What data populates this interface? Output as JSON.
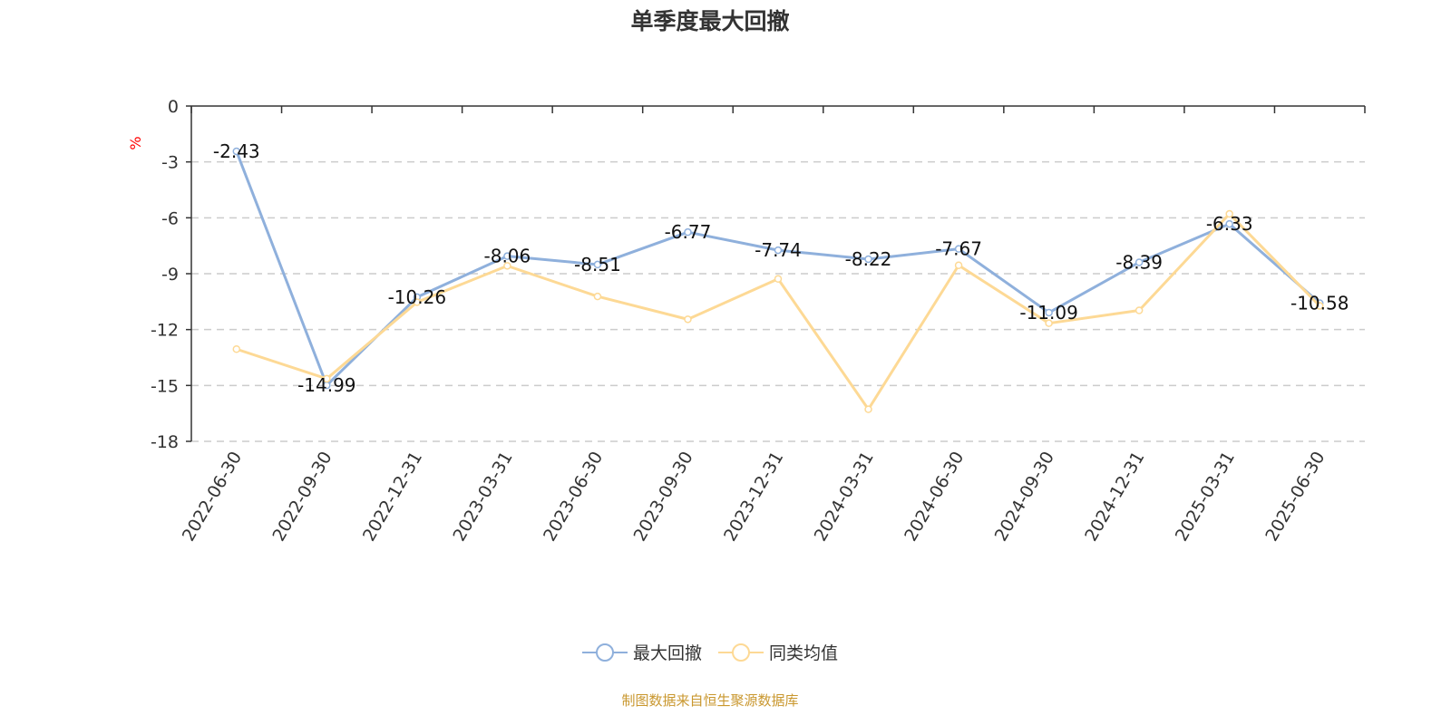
{
  "chart_data": {
    "type": "line",
    "title": "单季度最大回撤",
    "ylabel": "%",
    "xlabel": "",
    "categories": [
      "2022-06-30",
      "2022-09-30",
      "2022-12-31",
      "2023-03-31",
      "2023-06-30",
      "2023-09-30",
      "2023-12-31",
      "2024-03-31",
      "2024-06-30",
      "2024-09-30",
      "2024-12-31",
      "2025-03-31",
      "2025-06-30"
    ],
    "ylim": [
      -18,
      0
    ],
    "yticks": [
      0,
      -3,
      -6,
      -9,
      -12,
      -15,
      -18
    ],
    "grid": true,
    "legend_position": "bottom",
    "series": [
      {
        "name": "最大回撤",
        "color": "#8fb0dc",
        "show_labels": true,
        "values": [
          -2.43,
          -14.99,
          -10.26,
          -8.06,
          -8.51,
          -6.77,
          -7.74,
          -8.22,
          -7.67,
          -11.09,
          -8.39,
          -6.33,
          -10.58
        ]
      },
      {
        "name": "同类均值",
        "color": "#fdd995",
        "show_labels": false,
        "values": [
          -13.05,
          -14.64,
          -10.53,
          -8.58,
          -10.22,
          -11.45,
          -9.28,
          -16.28,
          -8.55,
          -11.66,
          -10.97,
          -5.79,
          -10.73
        ]
      }
    ]
  },
  "source": "制图数据来自恒生聚源数据库",
  "colors": {
    "ylabel": "#ff0000",
    "source": "#c9972e"
  }
}
